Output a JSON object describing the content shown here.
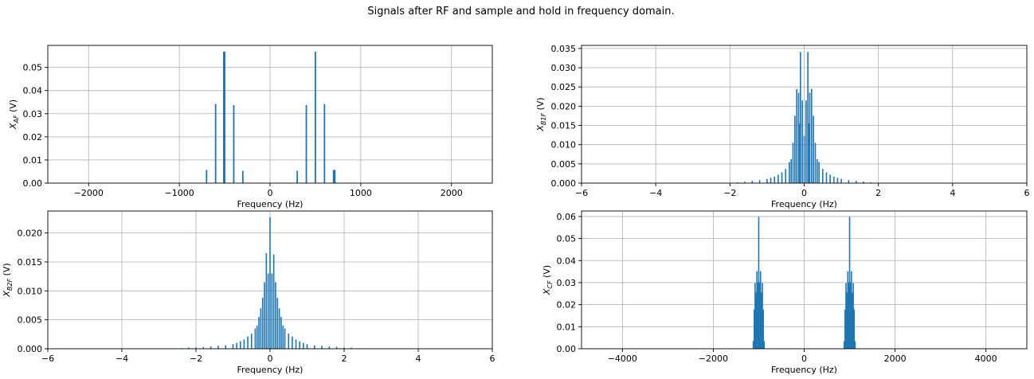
{
  "figure": {
    "title": "Signals after RF and sample and hold in frequency domain."
  },
  "colors": {
    "series": "#1f77b4",
    "grid": "#b0b0b0",
    "axis": "#000000"
  },
  "chart_data": [
    {
      "id": "xaf",
      "type": "bar",
      "xlabel": "Frequency (Hz)",
      "ylabel": {
        "base": "X",
        "sub": "AF",
        "unit": " (V)"
      },
      "xlim": [
        -2450,
        2450
      ],
      "ylim": [
        0,
        0.0595
      ],
      "xticks": [
        -2000,
        -1000,
        0,
        1000,
        2000
      ],
      "xtick_labels": [
        "−2000",
        "−1000",
        "0",
        "1000",
        "2000"
      ],
      "yticks": [
        0,
        0.01,
        0.02,
        0.03,
        0.04,
        0.05
      ],
      "ytick_labels": [
        "0.00",
        "0.01",
        "0.02",
        "0.03",
        "0.04",
        "0.05"
      ],
      "grid": true,
      "bar_width": 16,
      "points": [
        {
          "x": -700,
          "y": 0.0057
        },
        {
          "x": -600,
          "y": 0.0342
        },
        {
          "x": -510,
          "y": 0.0568
        },
        {
          "x": -500,
          "y": 0.0568
        },
        {
          "x": -400,
          "y": 0.0337
        },
        {
          "x": -300,
          "y": 0.0053
        },
        {
          "x": 300,
          "y": 0.0053
        },
        {
          "x": 400,
          "y": 0.0337
        },
        {
          "x": 500,
          "y": 0.0568
        },
        {
          "x": 600,
          "y": 0.0342
        },
        {
          "x": 700,
          "y": 0.0057
        },
        {
          "x": 715,
          "y": 0.0057
        }
      ]
    },
    {
      "id": "xb1f",
      "type": "bar",
      "xlabel": "Frequency (Hz)",
      "ylabel": {
        "base": "X",
        "sub": "B1F",
        "unit": " (V)"
      },
      "xlim": [
        -6,
        6
      ],
      "ylim": [
        0,
        0.0358
      ],
      "xticks": [
        -6,
        -4,
        -2,
        0,
        2,
        4,
        6
      ],
      "xtick_labels": [
        "−6",
        "−4",
        "−2",
        "0",
        "2",
        "4",
        "6"
      ],
      "yticks": [
        0,
        0.005,
        0.01,
        0.015,
        0.02,
        0.025,
        0.03,
        0.035
      ],
      "ytick_labels": [
        "0.000",
        "0.005",
        "0.010",
        "0.015",
        "0.020",
        "0.025",
        "0.030",
        "0.035"
      ],
      "grid": true,
      "bar_width": 0.035,
      "points": [
        {
          "x": -1.8,
          "y": 0.0002
        },
        {
          "x": -1.6,
          "y": 0.0004
        },
        {
          "x": -1.4,
          "y": 0.0006
        },
        {
          "x": -1.2,
          "y": 0.0008
        },
        {
          "x": -1.0,
          "y": 0.0011
        },
        {
          "x": -0.9,
          "y": 0.0014
        },
        {
          "x": -0.8,
          "y": 0.0017
        },
        {
          "x": -0.7,
          "y": 0.0022
        },
        {
          "x": -0.6,
          "y": 0.0028
        },
        {
          "x": -0.5,
          "y": 0.0037
        },
        {
          "x": -0.4,
          "y": 0.0055
        },
        {
          "x": -0.35,
          "y": 0.0062
        },
        {
          "x": -0.3,
          "y": 0.0105
        },
        {
          "x": -0.25,
          "y": 0.0175
        },
        {
          "x": -0.2,
          "y": 0.0245
        },
        {
          "x": -0.15,
          "y": 0.0235
        },
        {
          "x": -0.12,
          "y": 0.0155
        },
        {
          "x": -0.1,
          "y": 0.0341
        },
        {
          "x": -0.05,
          "y": 0.0215
        },
        {
          "x": 0,
          "y": 0.0123
        },
        {
          "x": 0.05,
          "y": 0.0215
        },
        {
          "x": 0.1,
          "y": 0.0341
        },
        {
          "x": 0.12,
          "y": 0.0155
        },
        {
          "x": 0.15,
          "y": 0.0235
        },
        {
          "x": 0.2,
          "y": 0.0245
        },
        {
          "x": 0.25,
          "y": 0.0175
        },
        {
          "x": 0.3,
          "y": 0.0105
        },
        {
          "x": 0.35,
          "y": 0.0062
        },
        {
          "x": 0.4,
          "y": 0.0055
        },
        {
          "x": 0.5,
          "y": 0.0037
        },
        {
          "x": 0.6,
          "y": 0.0028
        },
        {
          "x": 0.7,
          "y": 0.0022
        },
        {
          "x": 0.8,
          "y": 0.0017
        },
        {
          "x": 0.9,
          "y": 0.0014
        },
        {
          "x": 1.0,
          "y": 0.0011
        },
        {
          "x": 1.2,
          "y": 0.0008
        },
        {
          "x": 1.4,
          "y": 0.0006
        },
        {
          "x": 1.6,
          "y": 0.0004
        },
        {
          "x": 1.8,
          "y": 0.0002
        }
      ]
    },
    {
      "id": "xb2f",
      "type": "bar",
      "xlabel": "Frequency (Hz)",
      "ylabel": {
        "base": "X",
        "sub": "B2F",
        "unit": " (V)"
      },
      "xlim": [
        -6,
        6
      ],
      "ylim": [
        0,
        0.0238
      ],
      "xticks": [
        -6,
        -4,
        -2,
        0,
        2,
        4,
        6
      ],
      "xtick_labels": [
        "−6",
        "−4",
        "−2",
        "0",
        "2",
        "4",
        "6"
      ],
      "yticks": [
        0,
        0.005,
        0.01,
        0.015,
        0.02
      ],
      "ytick_labels": [
        "0.000",
        "0.005",
        "0.010",
        "0.015",
        "0.020"
      ],
      "grid": true,
      "bar_width": 0.035,
      "points": [
        {
          "x": -2.4,
          "y": 0.0001
        },
        {
          "x": -2.2,
          "y": 0.0002
        },
        {
          "x": -2.0,
          "y": 0.0002
        },
        {
          "x": -1.8,
          "y": 0.0003
        },
        {
          "x": -1.6,
          "y": 0.0004
        },
        {
          "x": -1.4,
          "y": 0.0005
        },
        {
          "x": -1.2,
          "y": 0.0006
        },
        {
          "x": -1.0,
          "y": 0.0008
        },
        {
          "x": -0.9,
          "y": 0.001
        },
        {
          "x": -0.8,
          "y": 0.0013
        },
        {
          "x": -0.7,
          "y": 0.0016
        },
        {
          "x": -0.6,
          "y": 0.0021
        },
        {
          "x": -0.5,
          "y": 0.0026
        },
        {
          "x": -0.4,
          "y": 0.0035
        },
        {
          "x": -0.35,
          "y": 0.004
        },
        {
          "x": -0.3,
          "y": 0.0055
        },
        {
          "x": -0.25,
          "y": 0.007
        },
        {
          "x": -0.2,
          "y": 0.0088
        },
        {
          "x": -0.15,
          "y": 0.0115
        },
        {
          "x": -0.1,
          "y": 0.0165
        },
        {
          "x": -0.05,
          "y": 0.013
        },
        {
          "x": 0,
          "y": 0.0227
        },
        {
          "x": 0.05,
          "y": 0.013
        },
        {
          "x": 0.1,
          "y": 0.0163
        },
        {
          "x": 0.15,
          "y": 0.0115
        },
        {
          "x": 0.2,
          "y": 0.0088
        },
        {
          "x": 0.25,
          "y": 0.007
        },
        {
          "x": 0.3,
          "y": 0.0055
        },
        {
          "x": 0.35,
          "y": 0.004
        },
        {
          "x": 0.4,
          "y": 0.0035
        },
        {
          "x": 0.5,
          "y": 0.0026
        },
        {
          "x": 0.6,
          "y": 0.0021
        },
        {
          "x": 0.7,
          "y": 0.0016
        },
        {
          "x": 0.8,
          "y": 0.0013
        },
        {
          "x": 0.9,
          "y": 0.001
        },
        {
          "x": 1.0,
          "y": 0.0008
        },
        {
          "x": 1.2,
          "y": 0.0006
        },
        {
          "x": 1.4,
          "y": 0.0005
        },
        {
          "x": 1.6,
          "y": 0.0004
        },
        {
          "x": 1.8,
          "y": 0.0003
        },
        {
          "x": 2.0,
          "y": 0.0002
        },
        {
          "x": 2.2,
          "y": 0.0002
        },
        {
          "x": 2.4,
          "y": 0.0001
        }
      ]
    },
    {
      "id": "xcf",
      "type": "bar",
      "xlabel": "Frequency (Hz)",
      "ylabel": {
        "base": "X",
        "sub": "CF",
        "unit": " (V)"
      },
      "xlim": [
        -4900,
        4900
      ],
      "ylim": [
        0,
        0.0625
      ],
      "xticks": [
        -4000,
        -2000,
        0,
        2000,
        4000
      ],
      "xtick_labels": [
        "−4000",
        "−2000",
        "0",
        "2000",
        "4000"
      ],
      "yticks": [
        0,
        0.01,
        0.02,
        0.03,
        0.04,
        0.05,
        0.06
      ],
      "ytick_labels": [
        "0.00",
        "0.01",
        "0.02",
        "0.03",
        "0.04",
        "0.05",
        "0.06"
      ],
      "grid": true,
      "bar_width": 12,
      "points": [
        {
          "x": -1120,
          "y": 0.0035
        },
        {
          "x": -1100,
          "y": 0.0178
        },
        {
          "x": -1080,
          "y": 0.0298
        },
        {
          "x": -1060,
          "y": 0.0255
        },
        {
          "x": -1040,
          "y": 0.0352
        },
        {
          "x": -1020,
          "y": 0.0302
        },
        {
          "x": -1000,
          "y": 0.0598
        },
        {
          "x": -980,
          "y": 0.0302
        },
        {
          "x": -960,
          "y": 0.0352
        },
        {
          "x": -940,
          "y": 0.0255
        },
        {
          "x": -920,
          "y": 0.0298
        },
        {
          "x": -900,
          "y": 0.0178
        },
        {
          "x": -880,
          "y": 0.0035
        },
        {
          "x": 880,
          "y": 0.0035
        },
        {
          "x": 900,
          "y": 0.0178
        },
        {
          "x": 920,
          "y": 0.0298
        },
        {
          "x": 940,
          "y": 0.0255
        },
        {
          "x": 960,
          "y": 0.0352
        },
        {
          "x": 980,
          "y": 0.0302
        },
        {
          "x": 1000,
          "y": 0.0598
        },
        {
          "x": 1020,
          "y": 0.0302
        },
        {
          "x": 1040,
          "y": 0.0352
        },
        {
          "x": 1060,
          "y": 0.0255
        },
        {
          "x": 1080,
          "y": 0.0298
        },
        {
          "x": 1100,
          "y": 0.0178
        },
        {
          "x": 1120,
          "y": 0.0035
        }
      ]
    }
  ]
}
